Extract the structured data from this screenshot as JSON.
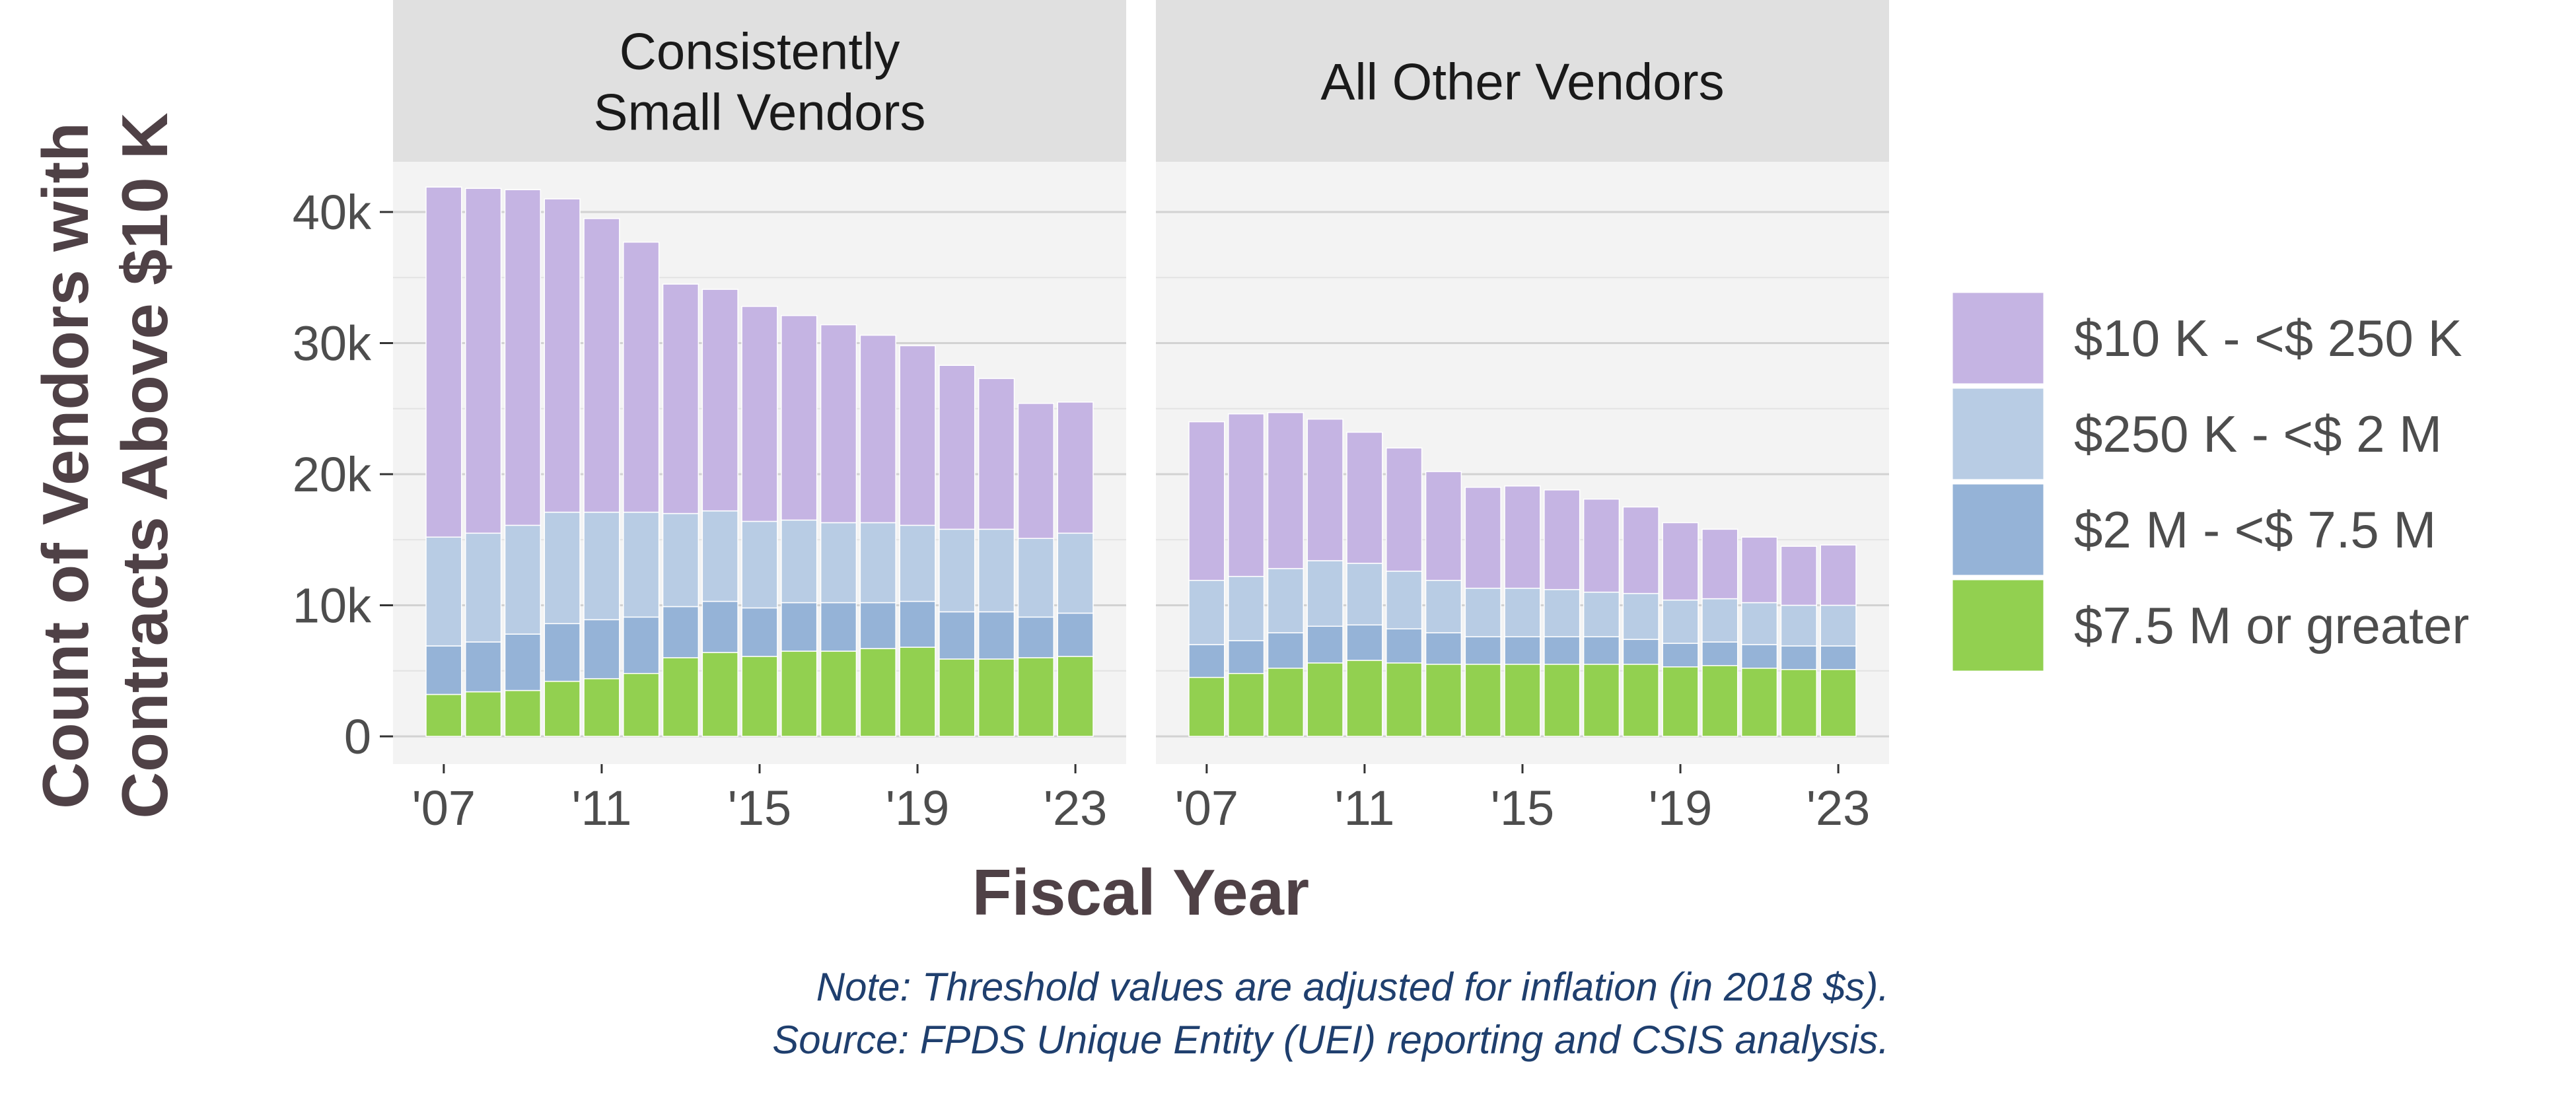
{
  "chart_data": {
    "type": "bar",
    "stacked": true,
    "x": [
      "2007",
      "2008",
      "2009",
      "2010",
      "2011",
      "2012",
      "2013",
      "2014",
      "2015",
      "2016",
      "2017",
      "2018",
      "2019",
      "2020",
      "2021",
      "2022",
      "2023"
    ],
    "x_tick_labels": [
      "'07",
      "'11",
      "'15",
      "'19",
      "'23"
    ],
    "x_tick_values": [
      "2007",
      "2011",
      "2015",
      "2019",
      "2023"
    ],
    "y_tick_labels": [
      "0",
      "10k",
      "20k",
      "30k",
      "40k"
    ],
    "y_tick_values": [
      0,
      10000,
      20000,
      30000,
      40000
    ],
    "ylim": [
      0,
      43000
    ],
    "xlabel": "Fiscal Year",
    "ylabel_lines": [
      "Count of Vendors with",
      "Contracts Above $10 K"
    ],
    "grid": true,
    "legend_position": "right",
    "series": [
      {
        "name": "$7.5 M or greater",
        "color": "#92d050"
      },
      {
        "name": "$2 M - <$ 7.5 M",
        "color": "#95b3d7"
      },
      {
        "name": "$250 K - <$ 2 M",
        "color": "#b8cce4"
      },
      {
        "name": "$10 K - <$ 250 K",
        "color": "#c5b4e3"
      }
    ],
    "panels": [
      {
        "title_lines": [
          "Consistently",
          "Small Vendors"
        ],
        "series_values": [
          [
            3200,
            3400,
            3500,
            4200,
            4400,
            4800,
            6000,
            6400,
            6100,
            6500,
            6500,
            6700,
            6800,
            5900,
            5900,
            6000,
            6100
          ],
          [
            3700,
            3800,
            4300,
            4400,
            4500,
            4300,
            3900,
            3900,
            3700,
            3700,
            3700,
            3500,
            3500,
            3600,
            3600,
            3100,
            3300
          ],
          [
            8300,
            8300,
            8300,
            8500,
            8200,
            8000,
            7100,
            6900,
            6600,
            6300,
            6100,
            6100,
            5800,
            6300,
            6300,
            6000,
            6100
          ],
          [
            26700,
            26300,
            25600,
            23900,
            22400,
            20600,
            17500,
            16900,
            16400,
            15600,
            15100,
            14300,
            13700,
            12500,
            11500,
            10300,
            10000
          ]
        ]
      },
      {
        "title_lines": [
          "All Other Vendors"
        ],
        "series_values": [
          [
            4500,
            4800,
            5200,
            5600,
            5800,
            5600,
            5500,
            5500,
            5500,
            5500,
            5500,
            5500,
            5300,
            5400,
            5200,
            5100,
            5100
          ],
          [
            2500,
            2500,
            2700,
            2800,
            2700,
            2600,
            2400,
            2100,
            2100,
            2100,
            2100,
            1900,
            1800,
            1800,
            1800,
            1800,
            1800
          ],
          [
            4900,
            4900,
            4900,
            5000,
            4700,
            4400,
            4000,
            3700,
            3700,
            3600,
            3400,
            3500,
            3300,
            3300,
            3200,
            3100,
            3100
          ],
          [
            12100,
            12400,
            11900,
            10800,
            10000,
            9400,
            8300,
            7700,
            7800,
            7600,
            7100,
            6600,
            5900,
            5300,
            5000,
            4500,
            4600
          ]
        ]
      }
    ]
  },
  "notes": [
    "Note: Threshold values are adjusted for inflation (in 2018 $s).",
    "Source: FPDS Unique Entity (UEI) reporting and CSIS analysis."
  ]
}
